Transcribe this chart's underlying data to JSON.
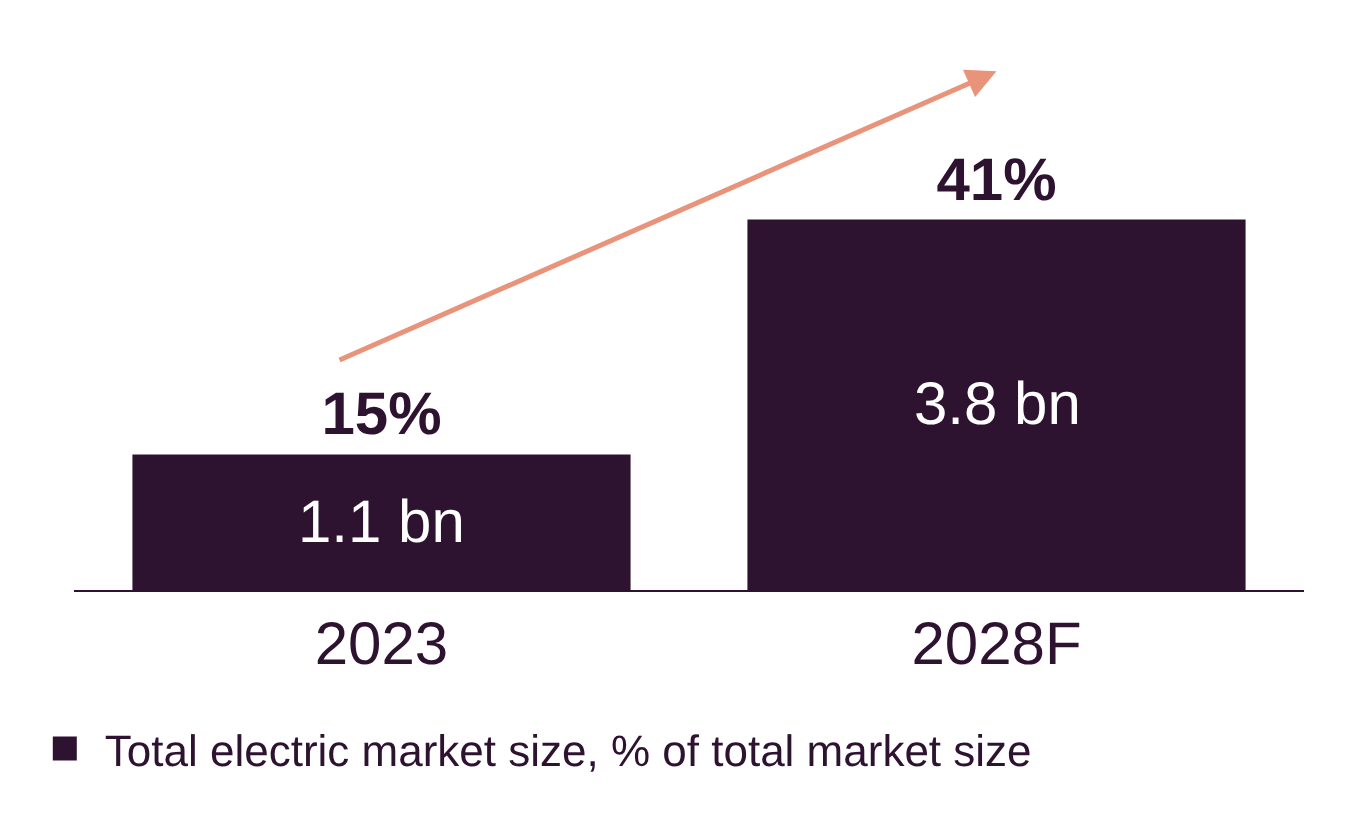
{
  "chart_data": {
    "type": "bar",
    "categories": [
      "2023",
      "2028F"
    ],
    "series": [
      {
        "name": "Total electric market size, % of total market size",
        "color": "#2e1330",
        "values": [
          15,
          41
        ],
        "value_labels": [
          "15%",
          "41%"
        ]
      }
    ],
    "annotations": [
      "1.1 bn",
      "3.8 bn"
    ],
    "legend": "bottom"
  }
}
